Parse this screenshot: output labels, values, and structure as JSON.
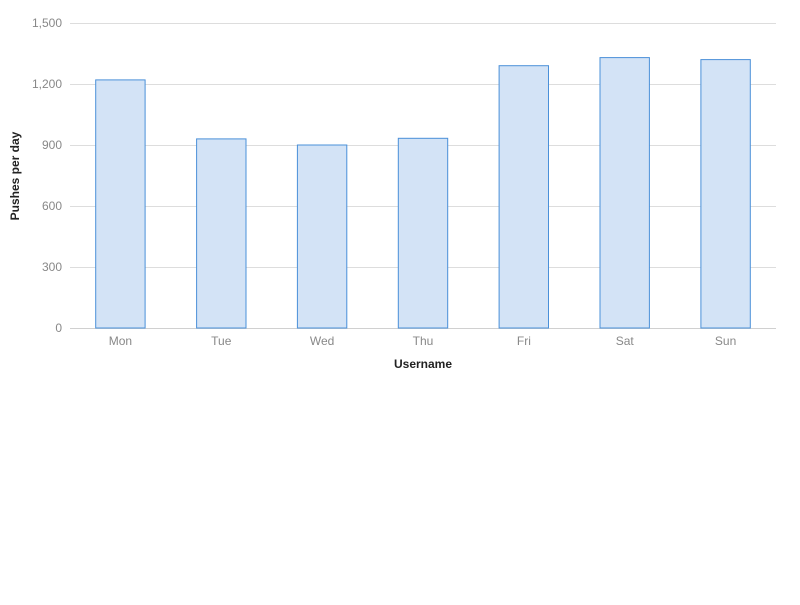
{
  "chart_data": {
    "type": "bar",
    "categories": [
      "Mon",
      "Tue",
      "Wed",
      "Thu",
      "Fri",
      "Sat",
      "Sun"
    ],
    "values": [
      1220,
      930,
      900,
      933,
      1290,
      1330,
      1320
    ],
    "xlabel": "Username",
    "ylabel": "Pushes per day",
    "ylim": [
      0,
      1500
    ],
    "yticks": [
      0,
      300,
      600,
      900,
      1200,
      1500
    ],
    "ytick_labels": [
      "0",
      "300",
      "600",
      "900",
      "1,200",
      "1,500"
    ],
    "grid": true,
    "legend": "none",
    "colors": {
      "bar_fill": "#d3e3f6",
      "bar_stroke": "#4a90d9",
      "grid": "#dddddd",
      "tick_text": "#888888",
      "title_text": "#222222"
    }
  }
}
